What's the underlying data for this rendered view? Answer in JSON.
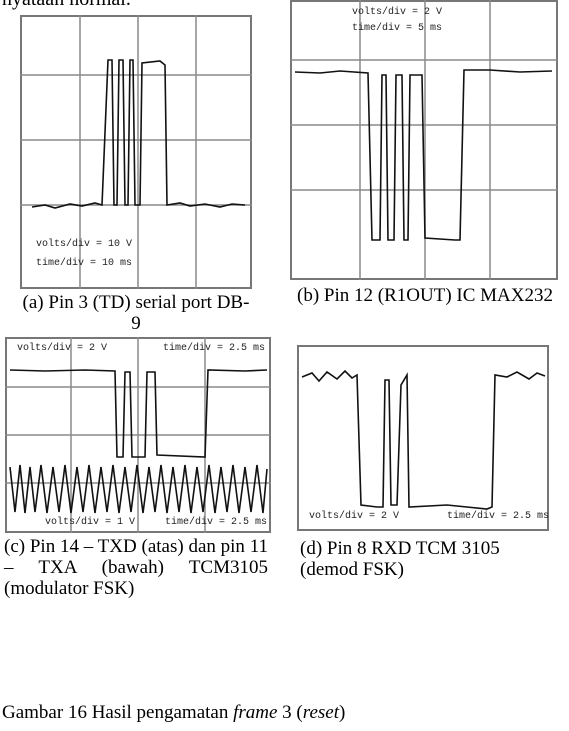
{
  "top_text": "nyataan normal.",
  "panels": [
    {
      "caption": "(a)  Pin 3 (TD) serial port DB-9",
      "scope_labels": [
        "volts/div = 10 V",
        "time/div = 10 ms"
      ]
    },
    {
      "caption": "(b) Pin 12 (R1OUT) IC MAX232",
      "scope_labels": [
        "volts/div = 2 V",
        "time/div = 5 ms"
      ]
    },
    {
      "caption": "(c) Pin 14 – TXD (atas) dan pin 11 – TXA (bawah) TCM3105 (modulator FSK)",
      "scope_labels": [
        "volts/div = 2 V",
        "time/div = 2.5 ms",
        "volts/div = 1 V",
        "time/div = 2.5 ms"
      ]
    },
    {
      "caption": "(d) Pin 8 RXD TCM 3105 (demod FSK)",
      "scope_labels": [
        "volts/div = 2 V",
        "time/div = 2.5 ms"
      ]
    }
  ],
  "figure_caption": {
    "prefix": "Gambar 16 Hasil pengamatan ",
    "italic1": "frame",
    "mid": " 3 (",
    "italic2": "reset",
    "suffix": ")"
  }
}
